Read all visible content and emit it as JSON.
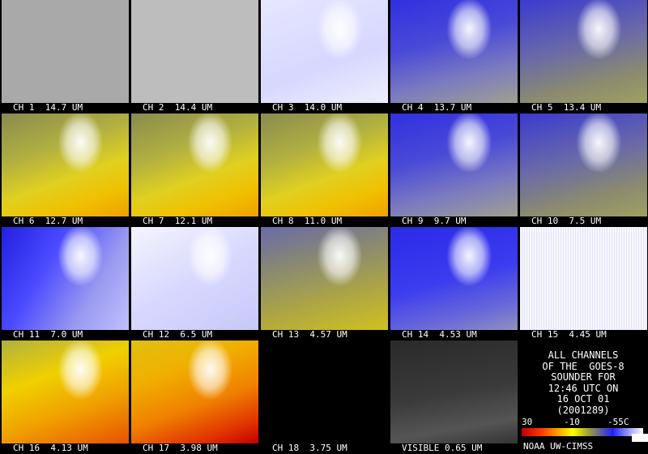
{
  "panels": [
    "CH 1  14.7 UM",
    "CH 2  14.4 UM",
    "CH 3  14.0 UM",
    "CH 4  13.7 UM",
    "CH 5  13.4 UM",
    "CH 6  12.7 UM",
    "CH 7  12.1 UM",
    "CH 8  11.0 UM",
    "CH 9  9.7 UM",
    "CH 10  7.5 UM",
    "CH 11  7.0 UM",
    "CH 12  6.5 UM",
    "CH 13  4.57 UM",
    "CH 14  4.53 UM",
    "CH 15  4.45 UM",
    "CH 16  4.13 UM",
    "CH 17  3.98 UM",
    "CH 18  3.75 UM",
    "VISIBLE 0.65 UM"
  ],
  "info": [
    "ALL CHANNELS",
    "OF THE  GOES-8",
    "SOUNDER FOR",
    "12:46 UTC ON",
    "16 OCT 01",
    "(2001289)"
  ],
  "legend": {
    "ticks": [
      "30",
      "-10",
      "-55C"
    ],
    "credit": "NOAA UW-CIMSS"
  }
}
